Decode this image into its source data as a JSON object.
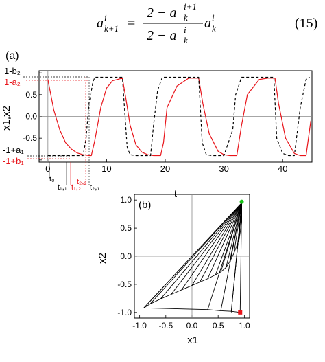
{
  "equation": {
    "lhs_base": "a",
    "lhs_sup": "i",
    "lhs_sub": "k+1",
    "equals": "=",
    "num": "2 − a",
    "num_sup": "i+1",
    "num_sub": "k",
    "den": "2 − a",
    "den_sup": "i",
    "den_sub": "k",
    "rhs_base": "a",
    "rhs_sup": "i",
    "rhs_sub": "k",
    "number": "(15)"
  },
  "panel_a": {
    "label": "(a)",
    "ylabel": "x1,x2",
    "xlabel": "t",
    "yticks": [
      "1.0",
      "0.5",
      "0.0",
      "-0.5",
      "-1.0"
    ],
    "xticks": [
      "0",
      "10",
      "20",
      "30",
      "40"
    ],
    "left_labels": {
      "one_minus_b2": "1-b₂",
      "one_minus_a2": "1-a₂",
      "minus_one_plus_a1": "-1+a₁",
      "minus_one_plus_b1": "-1+b₁"
    },
    "time_marks": {
      "t0": "t₀",
      "t11": "t₁,₁",
      "t12": "t₁,₂",
      "t22": "t₂,₂",
      "t21": "t₂,₁"
    },
    "colors": {
      "x1": "#e8141a",
      "x2": "#000000",
      "accent": "#e8141a"
    },
    "chart_data": {
      "type": "line",
      "xlim": [
        -1.5,
        45
      ],
      "ylim": [
        -1.05,
        1.05
      ],
      "series": [
        {
          "style": "solid-red",
          "x": [
            0,
            1,
            2,
            3,
            4,
            5,
            6,
            7,
            7.4,
            8,
            9,
            10,
            11,
            12.7,
            13.3,
            14,
            15,
            16,
            17,
            18,
            19.2,
            19.7,
            20.3,
            22,
            24,
            25.7,
            26.4,
            27.5,
            29,
            30,
            31,
            32.2,
            33,
            34,
            36,
            37.5,
            38.7,
            39.3,
            40.5,
            42,
            43,
            44,
            44.8
          ],
          "y": [
            0.85,
            0.15,
            -0.3,
            -0.6,
            -0.75,
            -0.84,
            -0.88,
            -0.9,
            -0.9,
            -0.55,
            0.2,
            0.65,
            0.82,
            0.88,
            0.4,
            -0.2,
            -0.65,
            -0.82,
            -0.88,
            -0.9,
            -0.9,
            -0.6,
            0.2,
            0.7,
            0.88,
            0.88,
            0.3,
            -0.4,
            -0.8,
            -0.88,
            -0.9,
            -0.9,
            -0.2,
            0.5,
            0.85,
            0.88,
            0.88,
            0.3,
            -0.5,
            -0.85,
            -0.9,
            -0.9,
            -0.1
          ]
        },
        {
          "style": "dashed-black",
          "x": [
            0,
            5,
            6,
            6.5,
            7,
            7.7,
            8,
            9,
            10,
            11,
            12,
            12.7,
            13.5,
            14,
            15,
            16,
            17,
            17.5,
            18,
            18.7,
            19.5,
            20,
            22,
            24,
            25.7,
            26.3,
            27,
            28,
            29,
            30,
            31.5,
            32,
            33,
            35,
            37,
            38.5,
            39,
            40,
            41,
            42,
            43,
            44,
            44.6
          ],
          "y": [
            -0.9,
            -0.9,
            -0.9,
            -0.5,
            0.3,
            0.8,
            0.9,
            0.9,
            0.9,
            0.9,
            0.9,
            0.9,
            -0.7,
            -0.88,
            -0.9,
            -0.9,
            -0.9,
            -0.9,
            -0.2,
            0.6,
            0.9,
            0.9,
            0.9,
            0.9,
            0.9,
            -0.6,
            -0.88,
            -0.9,
            -0.9,
            -0.9,
            -0.3,
            0.5,
            0.9,
            0.9,
            0.9,
            0.9,
            -0.5,
            -0.85,
            -0.9,
            -0.9,
            0.2,
            0.85,
            0.9
          ]
        }
      ]
    }
  },
  "panel_b": {
    "label": "(b)",
    "xlabel": "x1",
    "ylabel": "x2",
    "xticks": [
      "-1.0",
      "-0.5",
      "0.0",
      "0.5",
      "1.0"
    ],
    "yticks": [
      "1.0",
      "0.5",
      "0.0",
      "-0.5",
      "-1.0"
    ],
    "colors": {
      "start": "#19c219",
      "end": "#e8141a"
    },
    "chart_data": {
      "type": "line",
      "xlim": [
        -1.1,
        1.1
      ],
      "ylim": [
        -1.1,
        1.1
      ],
      "apex": [
        0.95,
        0.95
      ],
      "green_point": [
        0.95,
        0.97
      ],
      "red_point": [
        0.92,
        -1.0
      ],
      "fan_points": [
        [
          -0.92,
          -0.92
        ],
        [
          -0.8,
          -0.85
        ],
        [
          -0.6,
          -0.76
        ],
        [
          -0.4,
          -0.68
        ],
        [
          -0.2,
          -0.6
        ],
        [
          0.0,
          -0.52
        ],
        [
          0.15,
          -0.46
        ],
        [
          0.3,
          -0.4
        ],
        [
          0.45,
          -0.33
        ],
        [
          0.55,
          -0.28
        ],
        [
          0.65,
          -0.2
        ],
        [
          0.72,
          -0.1
        ],
        [
          0.8,
          0.05
        ],
        [
          0.9,
          0.3
        ],
        [
          0.95,
          0.6
        ]
      ],
      "bottom_points": [
        [
          -0.92,
          -0.92
        ],
        [
          0.3,
          -0.95
        ],
        [
          0.55,
          -0.97
        ],
        [
          0.75,
          -0.98
        ],
        [
          0.92,
          -1.0
        ]
      ]
    }
  }
}
